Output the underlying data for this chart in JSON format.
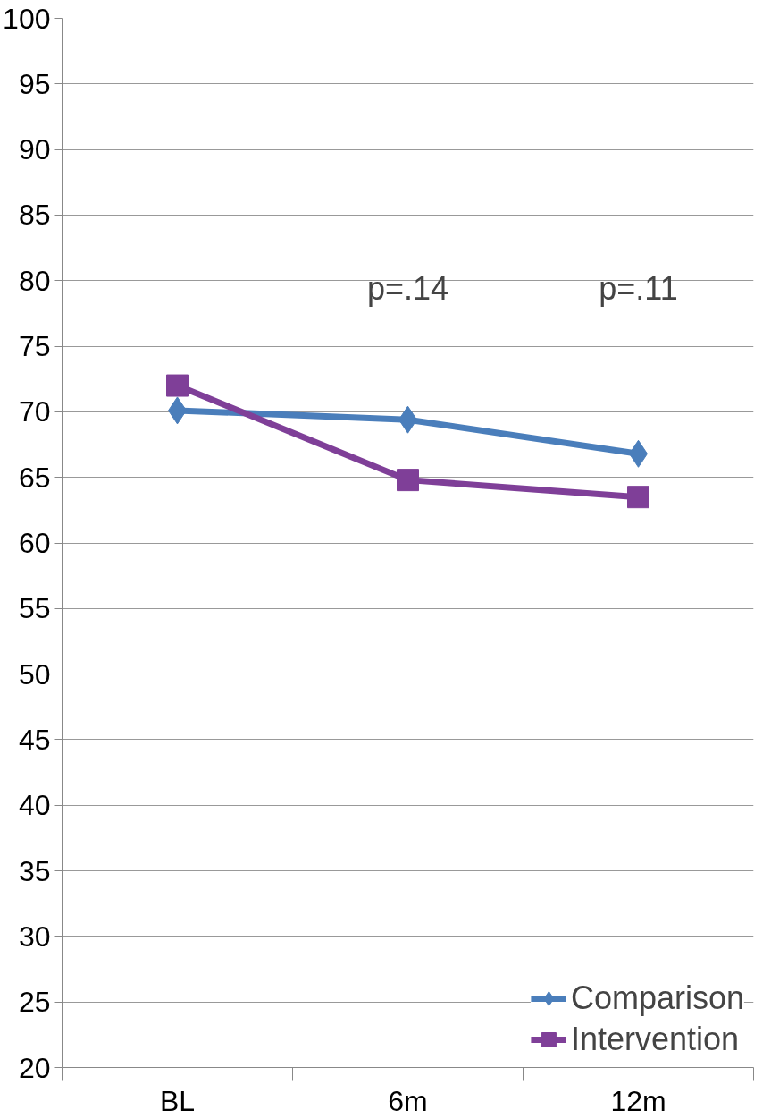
{
  "chart_data": {
    "type": "line",
    "categories": [
      "BL",
      "6m",
      "12m"
    ],
    "series": [
      {
        "name": "Comparison",
        "color": "#4a7ebb",
        "values": [
          70.1,
          69.4,
          66.8
        ],
        "marker": "diamond"
      },
      {
        "name": "Intervention",
        "color": "#7f3f98",
        "values": [
          72.0,
          64.8,
          63.5
        ],
        "marker": "square"
      }
    ],
    "ylim": [
      20,
      100
    ],
    "yticks": [
      20,
      25,
      30,
      35,
      40,
      45,
      50,
      55,
      60,
      65,
      70,
      75,
      80,
      85,
      90,
      95,
      100
    ],
    "grid": "y",
    "legend": "bottom right",
    "annotations": [
      "p=.14",
      "p=.11"
    ]
  }
}
